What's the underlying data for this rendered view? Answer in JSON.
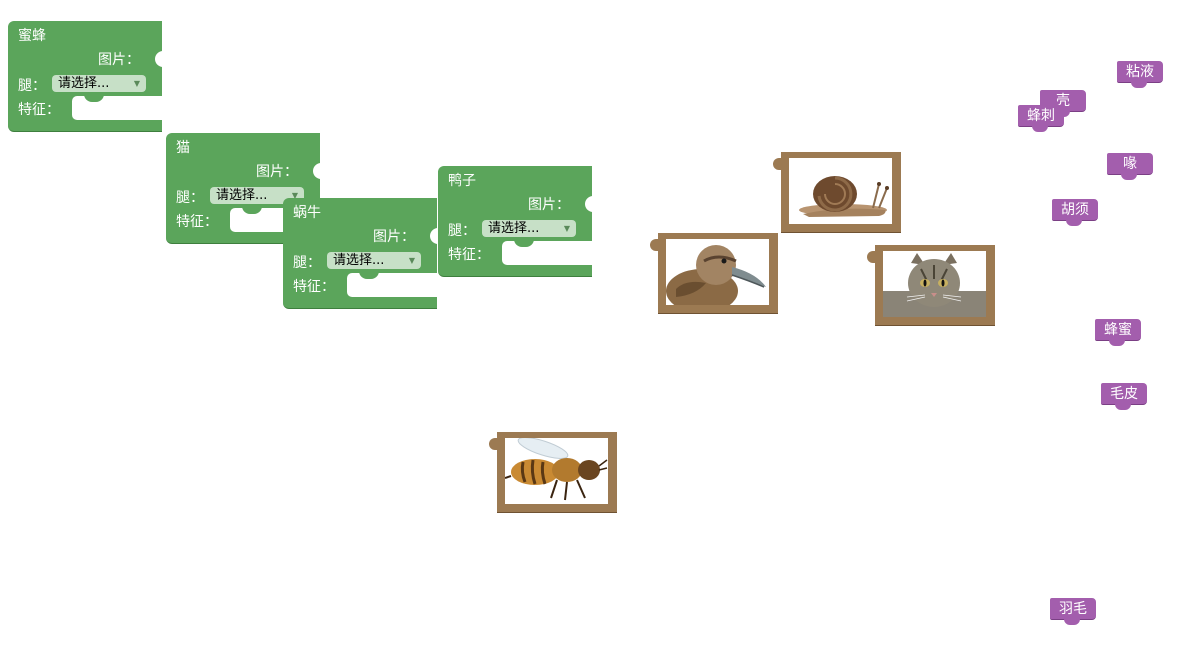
{
  "animal_blocks": [
    {
      "name": "蜜蜂",
      "image_label": "图片：",
      "leg_label": "腿：",
      "leg_value": "请选择...",
      "feature_label": "特征："
    },
    {
      "name": "猫",
      "image_label": "图片：",
      "leg_label": "腿：",
      "leg_value": "请选择...",
      "feature_label": "特征："
    },
    {
      "name": "蜗牛",
      "image_label": "图片：",
      "leg_label": "腿：",
      "leg_value": "请选择...",
      "feature_label": "特征："
    },
    {
      "name": "鸭子",
      "image_label": "图片：",
      "leg_label": "腿：",
      "leg_value": "请选择...",
      "feature_label": "特征："
    }
  ],
  "picture_blocks": [
    {
      "subject": "snail"
    },
    {
      "subject": "duck"
    },
    {
      "subject": "cat"
    },
    {
      "subject": "bee"
    }
  ],
  "feature_tags": [
    {
      "label": "粘液"
    },
    {
      "label": "壳"
    },
    {
      "label": "蜂刺"
    },
    {
      "label": "喙"
    },
    {
      "label": "胡须"
    },
    {
      "label": "蜂蜜"
    },
    {
      "label": "毛皮"
    },
    {
      "label": "羽毛"
    }
  ],
  "colors": {
    "animal_block": "#5ba55b",
    "picture_block": "#9c7a52",
    "feature_tag": "#a35ead"
  }
}
